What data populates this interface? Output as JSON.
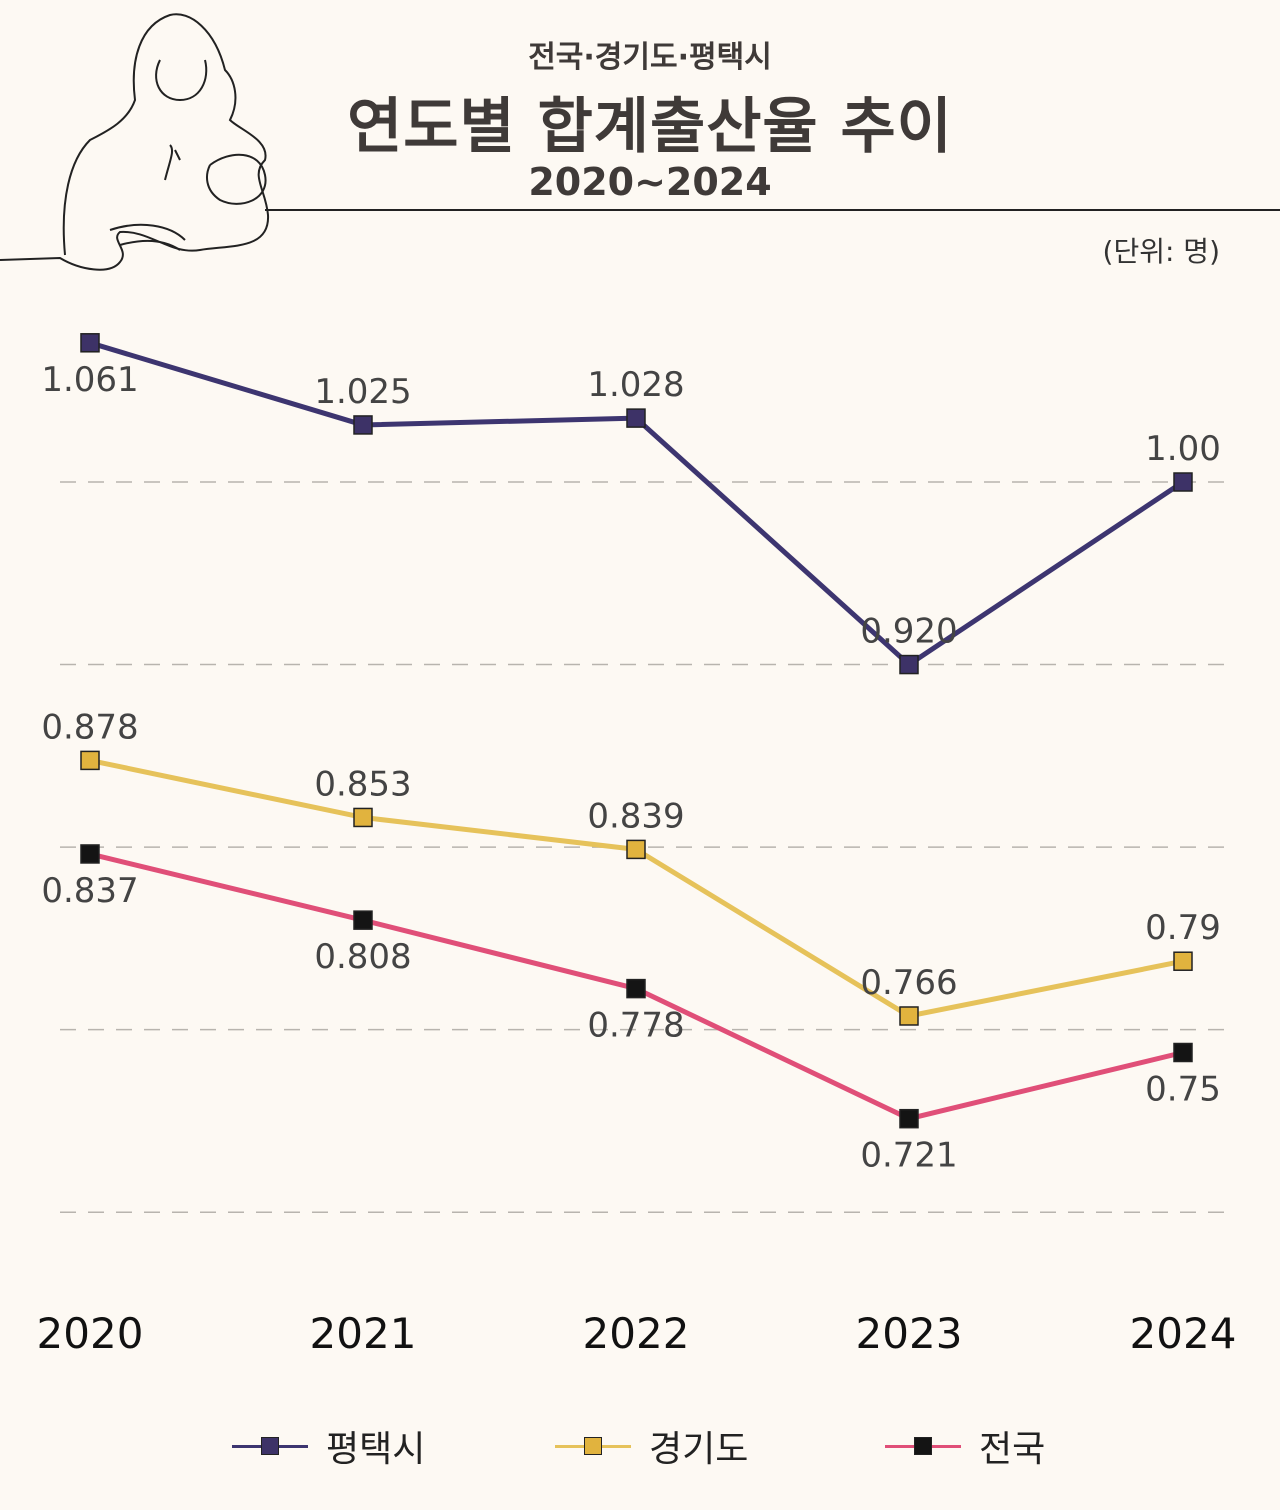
{
  "header": {
    "subtitle": "전국·경기도·평택시",
    "title": "연도별 합계출산율 추이",
    "period": "2020~2024",
    "unit": "(단위: 명)"
  },
  "chart_data": {
    "type": "line",
    "title": "연도별 합계출산율 추이",
    "categories": [
      "2020",
      "2021",
      "2022",
      "2023",
      "2024"
    ],
    "ylim": [
      0.68,
      1.08
    ],
    "gridlines": [
      1.0,
      0.92,
      0.84,
      0.76,
      0.68
    ],
    "grid": "horizontal dashed",
    "legend": "bottom",
    "series": [
      {
        "name": "평택시",
        "values": [
          1.061,
          1.025,
          1.028,
          0.92,
          1.0
        ],
        "labels": [
          "1.061",
          "1.025",
          "1.028",
          "0.920",
          "1.00"
        ],
        "line_color": "#3d3570",
        "marker_color": "#3d3267"
      },
      {
        "name": "경기도",
        "values": [
          0.878,
          0.853,
          0.839,
          0.766,
          0.79
        ],
        "labels": [
          "0.878",
          "0.853",
          "0.839",
          "0.766",
          "0.79"
        ],
        "line_color": "#e6c25a",
        "marker_color": "#e1b33e"
      },
      {
        "name": "전국",
        "values": [
          0.837,
          0.808,
          0.778,
          0.721,
          0.75
        ],
        "labels": [
          "0.837",
          "0.808",
          "0.778",
          "0.721",
          "0.75"
        ],
        "line_color": "#e04f78",
        "marker_color": "#141414"
      }
    ]
  }
}
